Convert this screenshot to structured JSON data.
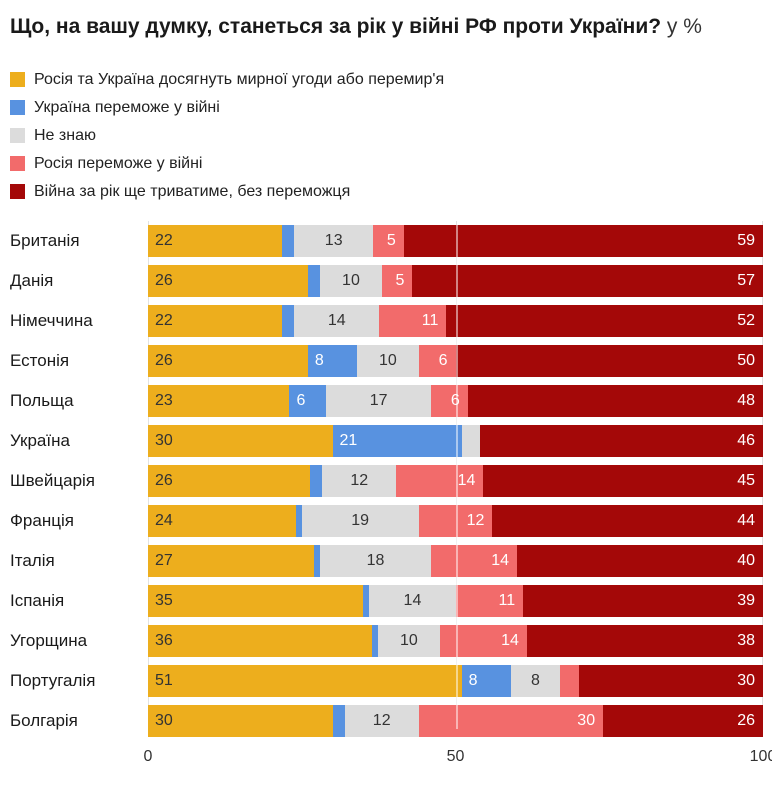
{
  "title": {
    "main": "Що, на вашу думку, станеться за рік у війні РФ проти України?",
    "suffix": "у %"
  },
  "colors": {
    "yellow": "#edae1d",
    "blue": "#5892e0",
    "gray": "#dcdcdc",
    "pink": "#f26b6b",
    "darkred": "#a40808",
    "grid": "#e2e2e2",
    "text_dark": "#333333",
    "text_white": "#ffffff"
  },
  "chart_data": {
    "type": "bar",
    "orientation": "horizontal",
    "stacked": true,
    "title": "Що, на вашу думку, станеться за рік у війні РФ проти України? у %",
    "xlabel": "",
    "ylabel": "",
    "xlim": [
      0,
      100
    ],
    "xticks": [
      0,
      50,
      100
    ],
    "grid": "vertical",
    "legend_position": "top",
    "label_min_value": 5,
    "categories": [
      "Британія",
      "Данія",
      "Німеччина",
      "Естонія",
      "Польща",
      "Україна",
      "Швейцарія",
      "Франція",
      "Італія",
      "Іспанія",
      "Угорщина",
      "Португалія",
      "Болгарія"
    ],
    "series": [
      {
        "name": "Росія та Україна досягнуть мирної угоди або перемир'я",
        "color_key": "yellow",
        "label_color": "dark",
        "label_align": "left",
        "values": [
          22,
          26,
          22,
          26,
          23,
          30,
          26,
          24,
          27,
          35,
          36,
          51,
          30
        ]
      },
      {
        "name": "Україна переможе у війні",
        "color_key": "blue",
        "label_color": "white",
        "label_align": "left",
        "values": [
          2,
          2,
          2,
          8,
          6,
          21,
          2,
          1,
          1,
          1,
          1,
          8,
          2
        ]
      },
      {
        "name": "Не знаю",
        "color_key": "gray",
        "label_color": "dark",
        "label_align": "center",
        "values": [
          13,
          10,
          14,
          10,
          17,
          3,
          12,
          19,
          18,
          14,
          10,
          8,
          12
        ]
      },
      {
        "name": "Росія переможе у війні",
        "color_key": "pink",
        "label_color": "white",
        "label_align": "right",
        "values": [
          5,
          5,
          11,
          6,
          6,
          0,
          14,
          12,
          14,
          11,
          14,
          3,
          30
        ]
      },
      {
        "name": "Війна за рік ще триватиме, без переможця",
        "color_key": "darkred",
        "label_color": "white",
        "label_align": "right",
        "values": [
          59,
          57,
          52,
          50,
          48,
          46,
          45,
          44,
          40,
          39,
          38,
          30,
          26
        ]
      }
    ]
  }
}
